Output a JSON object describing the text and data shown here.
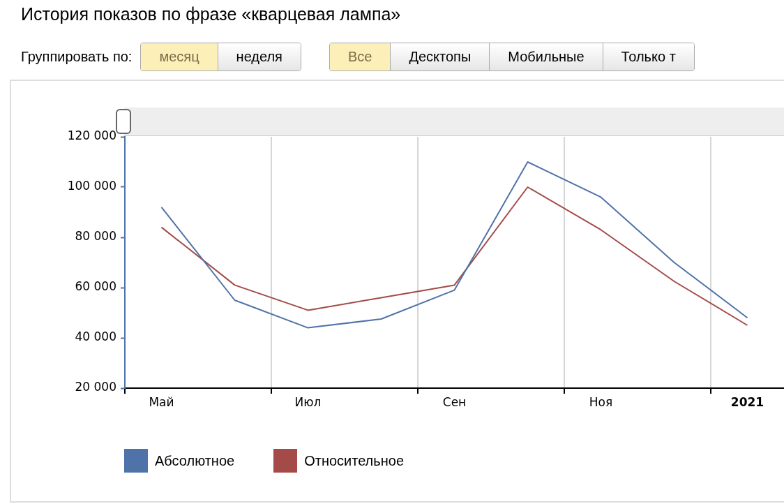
{
  "chart_data": {
    "type": "line",
    "title": "История показов по фразе «кварцевая лампа»",
    "annotations": [
      "Группировать по:",
      "месяц",
      "неделя",
      "Все",
      "Десктопы",
      "Мобильные",
      "Только т"
    ],
    "categories": [
      "Май",
      null,
      "Июл",
      null,
      "Сен",
      null,
      "Ноя",
      null,
      "2021"
    ],
    "series": [
      {
        "name": "Абсолютное",
        "color": "#4f73a8",
        "values": [
          92000,
          55000,
          44000,
          47500,
          59000,
          110000,
          96000,
          70000,
          48000
        ]
      },
      {
        "name": "Относительное",
        "color": "#a44a47",
        "values": [
          84000,
          61000,
          51000,
          56000,
          61000,
          100000,
          83000,
          62500,
          45000
        ]
      }
    ],
    "ylim": [
      20000,
      120000
    ],
    "yticks": [
      {
        "value": 20000,
        "label": "20 000"
      },
      {
        "value": 40000,
        "label": "40 000"
      },
      {
        "value": 60000,
        "label": "60 000"
      },
      {
        "value": 80000,
        "label": "80 000"
      },
      {
        "value": 100000,
        "label": "100 000"
      },
      {
        "value": 120000,
        "label": "120 000"
      }
    ],
    "grid": "x",
    "legend": "bottom left",
    "marker": "none",
    "line_style": "solid"
  }
}
